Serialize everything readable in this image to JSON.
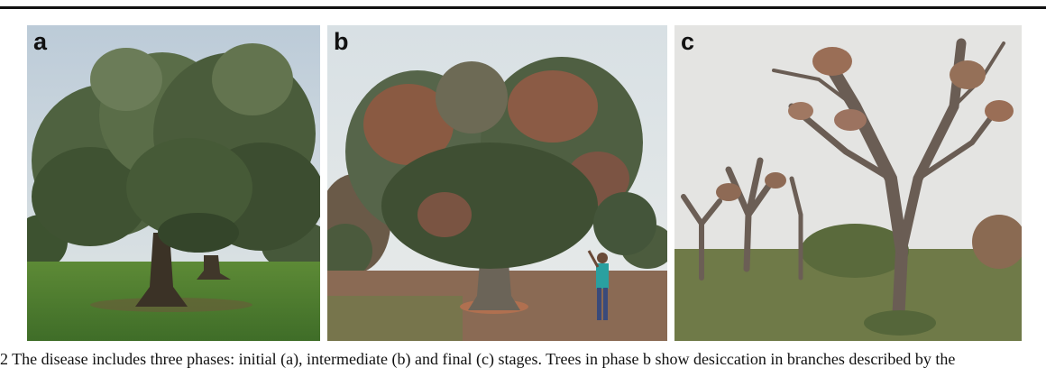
{
  "figure": {
    "panels": [
      {
        "label": "a"
      },
      {
        "label": "b"
      },
      {
        "label": "c"
      }
    ],
    "caption": "2  The disease includes three phases: initial (a), intermediate (b) and final (c) stages. Trees in phase b show desiccation in branches described by the"
  }
}
